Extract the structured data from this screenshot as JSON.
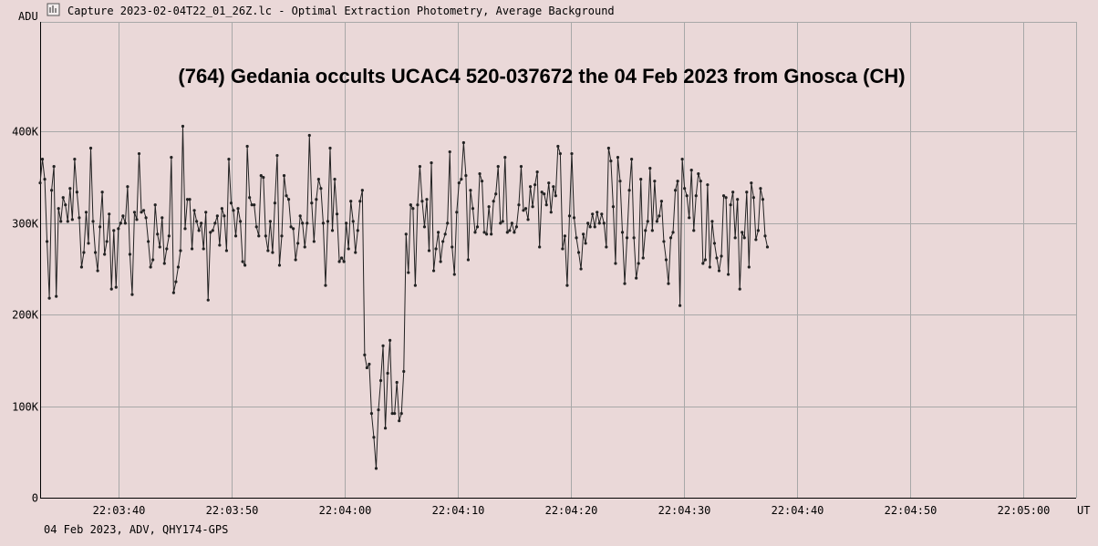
{
  "window": {
    "icon": "chart-icon",
    "title": "Capture 2023-02-04T22_01_26Z.lc - Optimal Extraction Photometry, Average Background"
  },
  "footer": {
    "text": "04 Feb 2023, ADV, QHY174-GPS"
  },
  "colors": {
    "background": "#ead8d8",
    "grid": "#a8a8a8",
    "series": "#222222"
  },
  "chart_data": {
    "type": "line",
    "title": "(764) Gedania occults UCAC4 520-037672 the 04 Feb 2023 from Gnosca (CH)",
    "ylabel": "ADU",
    "xlabel": "UT",
    "y_ticks": [
      {
        "value": 0,
        "label": "0"
      },
      {
        "value": 100000,
        "label": "100K"
      },
      {
        "value": 200000,
        "label": "200K"
      },
      {
        "value": 300000,
        "label": "300K"
      },
      {
        "value": 400000,
        "label": "400K"
      }
    ],
    "x_ticks": [
      {
        "value": 40,
        "label": "22:03:40"
      },
      {
        "value": 50,
        "label": "22:03:50"
      },
      {
        "value": 60,
        "label": "22:04:00"
      },
      {
        "value": 70,
        "label": "22:04:10"
      },
      {
        "value": 80,
        "label": "22:04:20"
      },
      {
        "value": 90,
        "label": "22:04:30"
      },
      {
        "value": 100,
        "label": "22:04:40"
      },
      {
        "value": 110,
        "label": "22:04:50"
      },
      {
        "value": 120,
        "label": "22:05:00"
      }
    ],
    "x_range": [
      33.05,
      124.65
    ],
    "y_range": [
      0,
      520000
    ],
    "grid": true,
    "series": [
      {
        "x_start": 33.05,
        "x_step": 0.2035,
        "values": [
          344000,
          370000,
          348000,
          280000,
          218000,
          336000,
          362000,
          220000,
          316000,
          302000,
          328000,
          320000,
          302000,
          338000,
          304000,
          370000,
          334000,
          306000,
          252000,
          268000,
          312000,
          278000,
          382000,
          302000,
          268000,
          248000,
          296000,
          334000,
          266000,
          280000,
          310000,
          228000,
          292000,
          230000,
          294000,
          300000,
          308000,
          300000,
          340000,
          266000,
          222000,
          312000,
          304000,
          376000,
          312000,
          314000,
          306000,
          280000,
          252000,
          260000,
          320000,
          288000,
          274000,
          306000,
          256000,
          272000,
          286000,
          372000,
          224000,
          236000,
          252000,
          270000,
          406000,
          294000,
          326000,
          326000,
          272000,
          314000,
          302000,
          292000,
          300000,
          272000,
          312000,
          216000,
          290000,
          292000,
          300000,
          308000,
          276000,
          316000,
          308000,
          270000,
          370000,
          322000,
          314000,
          286000,
          316000,
          302000,
          258000,
          254000,
          384000,
          328000,
          320000,
          320000,
          296000,
          286000,
          352000,
          350000,
          286000,
          270000,
          302000,
          268000,
          322000,
          374000,
          254000,
          286000,
          352000,
          330000,
          326000,
          296000,
          294000,
          260000,
          278000,
          308000,
          300000,
          274000,
          300000,
          396000,
          322000,
          280000,
          326000,
          348000,
          338000,
          300000,
          232000,
          302000,
          382000,
          292000,
          348000,
          310000,
          258000,
          262000,
          258000,
          300000,
          272000,
          324000,
          302000,
          268000,
          292000,
          324000,
          336000,
          156000,
          142000,
          146000,
          92000,
          66000,
          32000,
          96000,
          128000,
          166000,
          76000,
          136000,
          172000,
          92000,
          92000,
          126000,
          84000,
          92000,
          138000,
          288000,
          246000,
          320000,
          316000,
          232000,
          320000,
          362000,
          324000,
          296000,
          326000,
          270000,
          366000,
          248000,
          272000,
          290000,
          258000,
          280000,
          288000,
          300000,
          378000,
          274000,
          244000,
          312000,
          344000,
          348000,
          388000,
          352000,
          260000,
          336000,
          316000,
          290000,
          296000,
          354000,
          346000,
          290000,
          288000,
          318000,
          288000,
          324000,
          332000,
          362000,
          300000,
          302000,
          372000,
          290000,
          292000,
          300000,
          290000,
          296000,
          320000,
          362000,
          314000,
          316000,
          304000,
          340000,
          318000,
          342000,
          356000,
          274000,
          334000,
          332000,
          320000,
          344000,
          312000,
          340000,
          330000,
          384000,
          376000,
          272000,
          286000,
          232000,
          308000,
          376000,
          306000,
          284000,
          268000,
          250000,
          288000,
          278000,
          300000,
          296000,
          310000,
          296000,
          312000,
          300000,
          310000,
          300000,
          274000,
          382000,
          368000,
          318000,
          256000,
          372000,
          346000,
          290000,
          234000,
          284000,
          336000,
          370000,
          284000,
          240000,
          256000,
          348000,
          262000,
          292000,
          302000,
          360000,
          292000,
          346000,
          302000,
          308000,
          324000,
          280000,
          260000,
          234000,
          284000,
          290000,
          336000,
          346000,
          210000,
          370000,
          338000,
          330000,
          306000,
          358000,
          292000,
          330000,
          354000,
          346000,
          256000,
          260000,
          342000,
          252000,
          302000,
          278000,
          262000,
          248000,
          264000,
          330000,
          328000,
          244000,
          320000,
          334000,
          284000,
          326000,
          228000,
          290000,
          284000,
          334000,
          252000,
          344000,
          328000,
          282000,
          292000,
          338000,
          326000,
          286000,
          274000
        ]
      }
    ]
  }
}
